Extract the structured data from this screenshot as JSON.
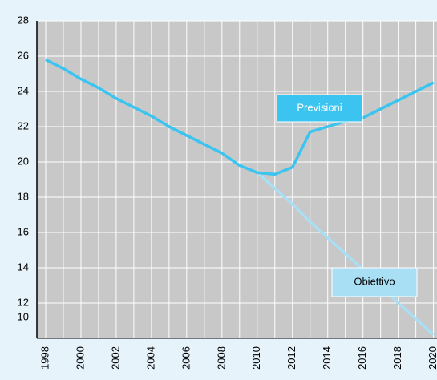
{
  "chart_data": {
    "type": "line",
    "x": [
      1998,
      1999,
      2000,
      2001,
      2002,
      2003,
      2004,
      2005,
      2006,
      2007,
      2008,
      2009,
      2010,
      2011,
      2012,
      2013,
      2014,
      2015,
      2016,
      2017,
      2018,
      2019,
      2020
    ],
    "series": [
      {
        "name": "Previsioni",
        "color": "#3cc4f0",
        "values": [
          25.8,
          25.3,
          24.7,
          24.2,
          23.6,
          23.1,
          22.6,
          22.0,
          21.5,
          21.0,
          20.5,
          19.8,
          19.4,
          19.3,
          19.7,
          21.7,
          22.0,
          22.3,
          22.5,
          23.0,
          23.5,
          24.0,
          24.5
        ]
      },
      {
        "name": "Obiettivo",
        "color": "#a8dff5",
        "values": [
          null,
          null,
          null,
          null,
          null,
          null,
          null,
          null,
          null,
          null,
          null,
          null,
          19.4,
          18.5,
          17.6,
          16.6,
          15.7,
          14.8,
          13.9,
          13.0,
          12.0,
          11.1,
          10.2
        ]
      }
    ],
    "xlim": [
      1997.5,
      2020.2
    ],
    "ylim": [
      10,
      28
    ],
    "xticks": [
      1998,
      2000,
      2002,
      2004,
      2006,
      2008,
      2010,
      2012,
      2014,
      2016,
      2018,
      2020
    ],
    "minor_xticks": [
      1999,
      2001,
      2003,
      2005,
      2007,
      2009,
      2011,
      2013,
      2015,
      2017,
      2019
    ],
    "yticks": [
      10,
      12,
      14,
      16,
      18,
      20,
      22,
      24,
      26,
      28
    ],
    "grid": true
  }
}
